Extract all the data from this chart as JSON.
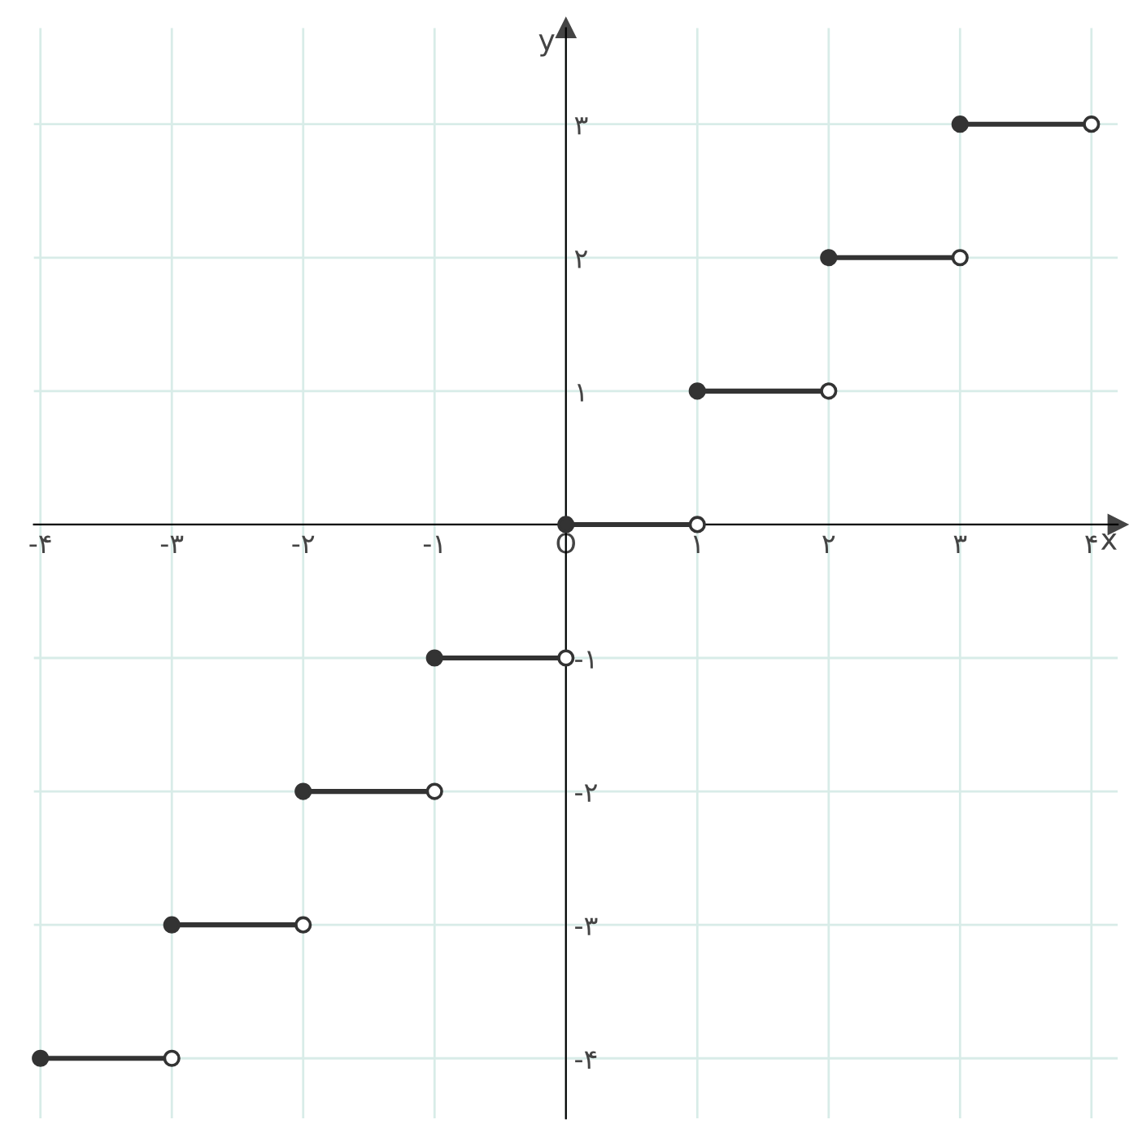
{
  "chart_data": {
    "type": "line",
    "xlabel": "x",
    "ylabel": "y",
    "xlim": [
      -4.05,
      4.2
    ],
    "ylim": [
      -4.45,
      3.72
    ],
    "xticks": [
      {
        "value": -4,
        "label": "-۴"
      },
      {
        "value": -3,
        "label": "-۳"
      },
      {
        "value": -2,
        "label": "-۲"
      },
      {
        "value": -1,
        "label": "-۱"
      },
      {
        "value": 0,
        "label": "O"
      },
      {
        "value": 1,
        "label": "۱"
      },
      {
        "value": 2,
        "label": "۲"
      },
      {
        "value": 3,
        "label": "۳"
      },
      {
        "value": 4,
        "label": "۴"
      }
    ],
    "yticks": [
      {
        "value": -4,
        "label": "-۴"
      },
      {
        "value": -3,
        "label": "-۳"
      },
      {
        "value": -2,
        "label": "-۲"
      },
      {
        "value": -1,
        "label": "-۱"
      },
      {
        "value": 1,
        "label": "۱"
      },
      {
        "value": 2,
        "label": "۲"
      },
      {
        "value": 3,
        "label": "۳"
      }
    ],
    "grid": true,
    "line_style": "solid",
    "series": [
      {
        "color": "#333333",
        "x": [
          -4,
          -3
        ],
        "values": [
          -4,
          -4
        ]
      },
      {
        "color": "#333333",
        "x": [
          -3,
          -2
        ],
        "values": [
          -3,
          -3
        ]
      },
      {
        "color": "#333333",
        "x": [
          -2,
          -1
        ],
        "values": [
          -2,
          -2
        ]
      },
      {
        "color": "#333333",
        "x": [
          -1,
          0
        ],
        "values": [
          -1,
          -1
        ]
      },
      {
        "color": "#333333",
        "x": [
          0,
          1
        ],
        "values": [
          0,
          0
        ]
      },
      {
        "color": "#333333",
        "x": [
          1,
          2
        ],
        "values": [
          1,
          1
        ]
      },
      {
        "color": "#333333",
        "x": [
          2,
          3
        ],
        "values": [
          2,
          2
        ]
      },
      {
        "color": "#333333",
        "x": [
          3,
          4
        ],
        "values": [
          3,
          3
        ]
      },
      {
        "type": "scatter",
        "marker": "circle",
        "color": "#333333",
        "x": [
          -4,
          -3,
          -2,
          -1,
          0,
          1,
          2,
          3
        ],
        "values": [
          -4,
          -3,
          -2,
          -1,
          0,
          1,
          2,
          3
        ]
      },
      {
        "type": "scatter",
        "marker": "circle",
        "color": "#ffffff",
        "x": [
          -3,
          -2,
          -1,
          0,
          1,
          2,
          3,
          4
        ],
        "values": [
          -4,
          -3,
          -2,
          -1,
          0,
          1,
          2,
          3
        ]
      }
    ]
  }
}
